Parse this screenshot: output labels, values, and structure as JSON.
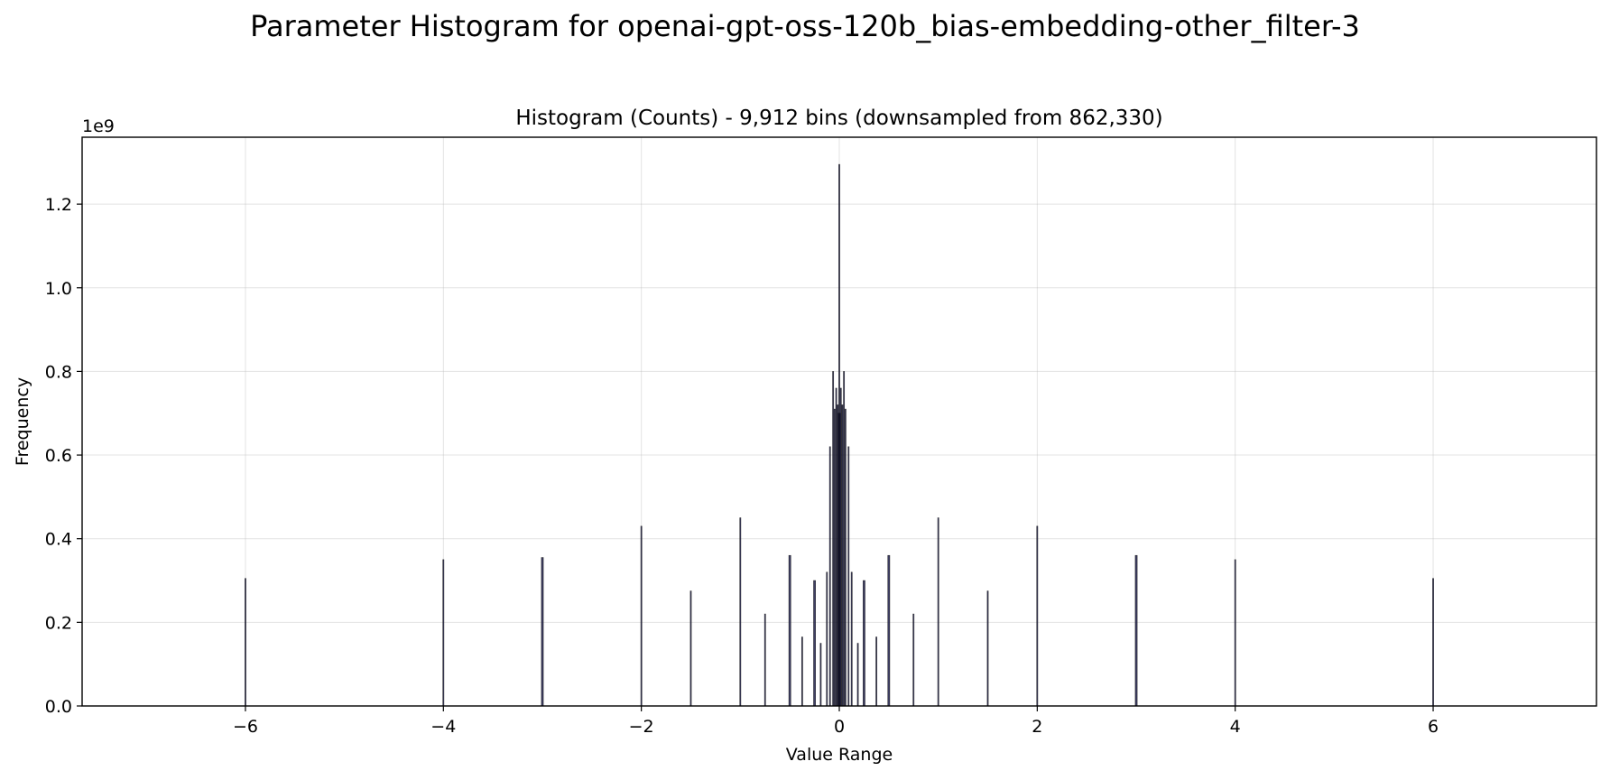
{
  "chart_data": {
    "type": "bar",
    "suptitle": "Parameter Histogram for openai-gpt-oss-120b_bias-embedding-other_filter-3",
    "title": "Histogram (Counts) - 9,912 bins (downsampled from 862,330)",
    "xlabel": "Value Range",
    "ylabel": "Frequency",
    "y_offset_label": "1e9",
    "xlim": [
      -7.65,
      7.65
    ],
    "ylim": [
      0,
      1.36
    ],
    "x_ticks": [
      -6,
      -4,
      -2,
      0,
      2,
      4,
      6
    ],
    "x_tick_labels": [
      "−6",
      "−4",
      "−2",
      "0",
      "2",
      "4",
      "6"
    ],
    "y_ticks": [
      0.0,
      0.2,
      0.4,
      0.6,
      0.8,
      1.0,
      1.2
    ],
    "y_tick_labels": [
      "0.0",
      "0.2",
      "0.4",
      "0.6",
      "0.8",
      "1.0",
      "1.2"
    ],
    "grid": true,
    "bar_color": "#1f1f4a",
    "series": [
      {
        "name": "Frequency (×1e9)",
        "x": [
          -6,
          -4,
          -3,
          -2,
          -1.5,
          -1,
          -0.75,
          -0.5,
          -0.375,
          -0.25,
          -0.1875,
          -0.125,
          -0.09375,
          -0.0625,
          -0.046875,
          -0.03125,
          -0.015625,
          -0.0078,
          0,
          0.0078,
          0.015625,
          0.03125,
          0.046875,
          0.0625,
          0.09375,
          0.125,
          0.1875,
          0.25,
          0.375,
          0.5,
          0.75,
          1,
          1.5,
          2,
          3,
          4,
          6
        ],
        "values": [
          0.305,
          0.35,
          0.355,
          0.43,
          0.275,
          0.45,
          0.22,
          0.36,
          0.165,
          0.3,
          0.15,
          0.32,
          0.62,
          0.8,
          0.71,
          0.76,
          0.72,
          0.7,
          1.295,
          0.7,
          0.76,
          0.72,
          0.8,
          0.71,
          0.62,
          0.32,
          0.15,
          0.3,
          0.165,
          0.36,
          0.22,
          0.45,
          0.275,
          0.43,
          0.36,
          0.35,
          0.305
        ]
      }
    ]
  }
}
